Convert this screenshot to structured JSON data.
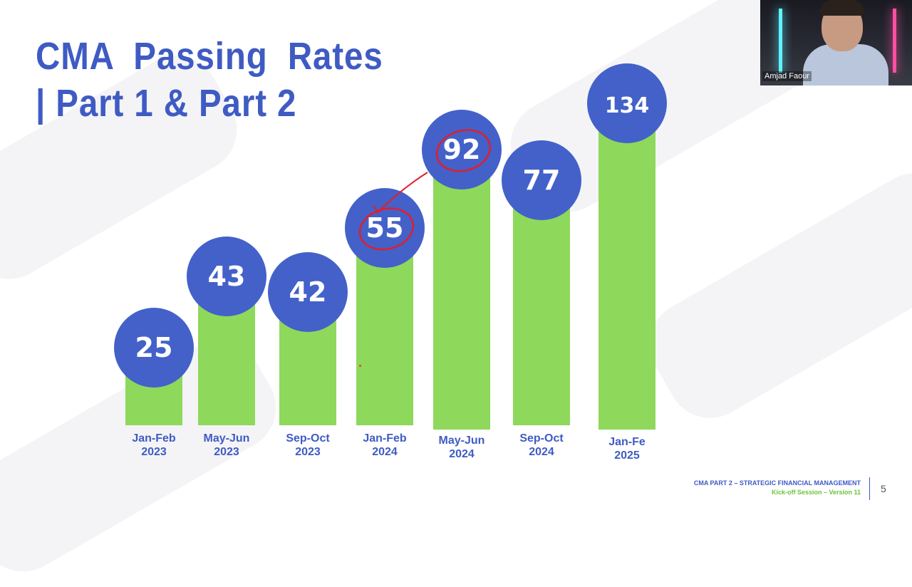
{
  "slide": {
    "title_line1": "CMA  Passing  Rates",
    "title_line2": "| Part 1 & Part 2",
    "footer_line1": "CMA PART 2 – STRATEGIC FINANCIAL MANAGEMENT",
    "footer_line2": "Kick-off Session – Version 11",
    "page_number": "5"
  },
  "webcam": {
    "participant_name": "Amjad Faour"
  },
  "colors": {
    "accent": "#3f5bc3",
    "bar": "#8ed85c",
    "bubble": "#4361c9",
    "annotation": "#e01f2a"
  },
  "chart_data": {
    "type": "bar",
    "categories": [
      [
        "Jan-Feb",
        "2023"
      ],
      [
        "May-Jun",
        "2023"
      ],
      [
        "Sep-Oct",
        "2023"
      ],
      [
        "Jan-Feb",
        "2024"
      ],
      [
        "May-Jun",
        "2024"
      ],
      [
        "Sep-Oct",
        "2024"
      ],
      [
        "Jan-Fe",
        "2025"
      ]
    ],
    "values": [
      25,
      43,
      42,
      55,
      92,
      77,
      134
    ],
    "title": "CMA  Passing  Rates | Part 1 & Part 2",
    "annotations": {
      "circled_values": [
        55,
        92
      ],
      "arrow_from": 55,
      "arrow_to": 92
    }
  }
}
